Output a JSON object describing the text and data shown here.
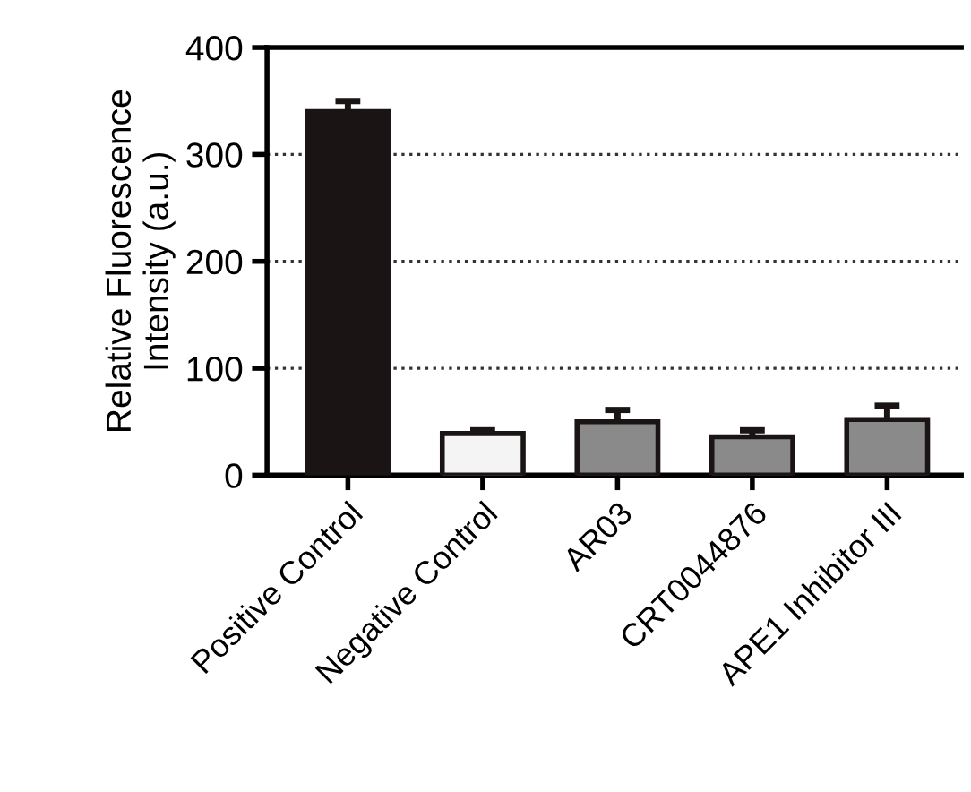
{
  "chart_data": {
    "type": "bar",
    "ylabel": "Relative Fluorescence\nIntensity (a.u.)",
    "categories": [
      "Positive Control",
      "Negative Control",
      "AR03",
      "CRT0044876",
      "APE1 Inhibitor III"
    ],
    "values": [
      340,
      39,
      50,
      36,
      52
    ],
    "errors": [
      10,
      3,
      11,
      6,
      13
    ],
    "colors": [
      "#1a1414",
      "#f4f4f4",
      "#8a8a8a",
      "#8a8a8a",
      "#8a8a8a"
    ],
    "ylim": [
      0,
      400
    ],
    "yticks": [
      0,
      100,
      200,
      300,
      400
    ],
    "grid": "y"
  }
}
